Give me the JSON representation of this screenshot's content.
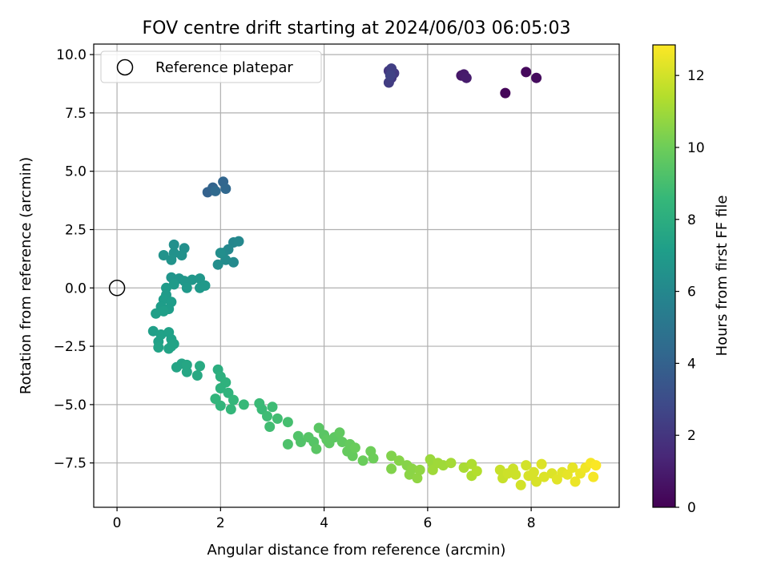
{
  "chart_data": {
    "type": "scatter",
    "title": "FOV centre drift starting at 2024/06/03 06:05:03",
    "xlabel": "Angular distance from reference (arcmin)",
    "ylabel": "Rotation from reference (arcmin)",
    "xlim": [
      -0.45,
      9.7
    ],
    "ylim": [
      -9.4,
      10.45
    ],
    "xticks": [
      0,
      2,
      4,
      6,
      8
    ],
    "xtick_labels": [
      "0",
      "2",
      "4",
      "6",
      "8"
    ],
    "yticks": [
      -7.5,
      -5.0,
      -2.5,
      0.0,
      2.5,
      5.0,
      7.5,
      10.0
    ],
    "ytick_labels": [
      "−7.5",
      "−5.0",
      "−2.5",
      "0.0",
      "2.5",
      "5.0",
      "7.5",
      "10.0"
    ],
    "grid": true,
    "legend": {
      "placement": "top-left",
      "entries": [
        "Reference platepar"
      ]
    },
    "reference_marker": {
      "label": "Reference platepar",
      "x": 0,
      "y": 0,
      "style": "open-circle"
    },
    "colorbar": {
      "label": "Hours from first FF file",
      "colormap": "viridis",
      "range": [
        0,
        12.85
      ],
      "ticks": [
        0,
        2,
        4,
        6,
        8,
        10,
        12
      ],
      "tick_labels": [
        "0",
        "2",
        "4",
        "6",
        "8",
        "10",
        "12"
      ]
    },
    "series": [
      {
        "columns": [
          "x",
          "y",
          "hours"
        ],
        "points": [
          [
            7.5,
            8.35,
            0.2
          ],
          [
            7.9,
            9.25,
            0.3
          ],
          [
            8.1,
            9.0,
            0.4
          ],
          [
            6.65,
            9.1,
            0.8
          ],
          [
            6.7,
            9.15,
            0.9
          ],
          [
            6.75,
            9.0,
            1.0
          ],
          [
            5.25,
            9.3,
            2.0
          ],
          [
            5.3,
            9.0,
            2.1
          ],
          [
            5.35,
            9.2,
            2.2
          ],
          [
            5.25,
            8.8,
            2.3
          ],
          [
            5.3,
            9.4,
            2.4
          ],
          [
            5.28,
            9.1,
            2.5
          ],
          [
            1.75,
            4.1,
            4.0
          ],
          [
            1.85,
            4.3,
            4.1
          ],
          [
            2.05,
            4.55,
            4.2
          ],
          [
            2.1,
            4.25,
            4.3
          ],
          [
            1.9,
            4.15,
            4.4
          ],
          [
            2.25,
            1.95,
            5.9
          ],
          [
            2.35,
            2.0,
            6.0
          ],
          [
            2.15,
            1.65,
            6.0
          ],
          [
            2.05,
            1.5,
            6.1
          ],
          [
            2.25,
            1.1,
            6.1
          ],
          [
            2.1,
            1.2,
            6.2
          ],
          [
            1.95,
            1.0,
            6.3
          ],
          [
            2.0,
            1.5,
            6.3
          ],
          [
            1.1,
            1.85,
            6.4
          ],
          [
            1.3,
            1.7,
            6.4
          ],
          [
            1.1,
            1.5,
            6.5
          ],
          [
            1.25,
            1.4,
            6.5
          ],
          [
            0.9,
            1.4,
            6.6
          ],
          [
            1.05,
            1.2,
            6.6
          ],
          [
            1.05,
            0.45,
            6.7
          ],
          [
            1.2,
            0.4,
            6.7
          ],
          [
            1.3,
            0.3,
            6.8
          ],
          [
            1.45,
            0.35,
            6.8
          ],
          [
            1.6,
            0.4,
            6.8
          ],
          [
            1.7,
            0.1,
            6.9
          ],
          [
            1.6,
            0.0,
            6.9
          ],
          [
            1.35,
            0.0,
            6.9
          ],
          [
            1.1,
            0.15,
            7.0
          ],
          [
            0.95,
            0.0,
            7.0
          ],
          [
            0.95,
            -0.3,
            7.0
          ],
          [
            0.9,
            -0.5,
            7.1
          ],
          [
            1.05,
            -0.6,
            7.1
          ],
          [
            0.85,
            -0.8,
            7.1
          ],
          [
            1.0,
            -0.9,
            7.1
          ],
          [
            0.75,
            -1.1,
            7.2
          ],
          [
            0.9,
            -1.0,
            7.2
          ],
          [
            0.7,
            -1.85,
            7.2
          ],
          [
            0.85,
            -2.0,
            7.3
          ],
          [
            1.0,
            -1.9,
            7.3
          ],
          [
            0.8,
            -2.3,
            7.3
          ],
          [
            1.05,
            -2.2,
            7.3
          ],
          [
            0.8,
            -2.55,
            7.4
          ],
          [
            1.0,
            -2.6,
            7.4
          ],
          [
            1.1,
            -2.4,
            7.4
          ],
          [
            1.05,
            -2.5,
            7.4
          ],
          [
            1.15,
            -3.4,
            7.5
          ],
          [
            1.25,
            -3.25,
            7.5
          ],
          [
            1.35,
            -3.3,
            7.6
          ],
          [
            1.35,
            -3.6,
            7.6
          ],
          [
            1.55,
            -3.75,
            7.7
          ],
          [
            1.6,
            -3.35,
            7.8
          ],
          [
            1.95,
            -3.5,
            8.0
          ],
          [
            2.0,
            -3.8,
            8.1
          ],
          [
            2.1,
            -4.05,
            8.2
          ],
          [
            2.0,
            -4.3,
            8.2
          ],
          [
            2.15,
            -4.5,
            8.3
          ],
          [
            1.9,
            -4.75,
            8.4
          ],
          [
            2.0,
            -5.05,
            8.4
          ],
          [
            2.25,
            -4.8,
            8.5
          ],
          [
            2.2,
            -5.2,
            8.5
          ],
          [
            2.45,
            -5.0,
            8.6
          ],
          [
            2.75,
            -4.95,
            8.7
          ],
          [
            2.8,
            -5.2,
            8.7
          ],
          [
            2.9,
            -5.5,
            8.8
          ],
          [
            3.0,
            -5.1,
            8.8
          ],
          [
            2.95,
            -5.95,
            8.9
          ],
          [
            3.1,
            -5.6,
            8.9
          ],
          [
            3.3,
            -5.75,
            9.0
          ],
          [
            3.3,
            -6.7,
            9.2
          ],
          [
            3.5,
            -6.35,
            9.3
          ],
          [
            3.55,
            -6.6,
            9.3
          ],
          [
            3.7,
            -6.4,
            9.4
          ],
          [
            3.8,
            -6.6,
            9.4
          ],
          [
            3.9,
            -6.0,
            9.5
          ],
          [
            3.85,
            -6.9,
            9.5
          ],
          [
            4.0,
            -6.3,
            9.5
          ],
          [
            4.05,
            -6.5,
            9.6
          ],
          [
            4.1,
            -6.65,
            9.6
          ],
          [
            4.2,
            -6.4,
            9.6
          ],
          [
            4.3,
            -6.2,
            9.7
          ],
          [
            4.35,
            -6.6,
            9.7
          ],
          [
            4.45,
            -7.0,
            9.8
          ],
          [
            4.5,
            -6.7,
            9.8
          ],
          [
            4.55,
            -7.2,
            9.8
          ],
          [
            4.6,
            -6.85,
            9.9
          ],
          [
            4.75,
            -7.4,
            9.9
          ],
          [
            4.9,
            -7.0,
            10.0
          ],
          [
            4.95,
            -7.3,
            10.0
          ],
          [
            5.3,
            -7.2,
            10.4
          ],
          [
            5.3,
            -7.75,
            10.4
          ],
          [
            5.45,
            -7.4,
            10.5
          ],
          [
            5.6,
            -7.6,
            10.5
          ],
          [
            5.65,
            -8.0,
            10.6
          ],
          [
            5.7,
            -7.75,
            10.6
          ],
          [
            5.8,
            -8.15,
            10.7
          ],
          [
            5.85,
            -7.8,
            10.7
          ],
          [
            6.05,
            -7.35,
            10.9
          ],
          [
            6.1,
            -7.55,
            10.9
          ],
          [
            6.1,
            -7.8,
            11.0
          ],
          [
            6.2,
            -7.5,
            11.0
          ],
          [
            6.3,
            -7.6,
            11.0
          ],
          [
            6.45,
            -7.5,
            11.1
          ],
          [
            6.7,
            -7.7,
            11.2
          ],
          [
            6.85,
            -7.55,
            11.3
          ],
          [
            6.85,
            -8.05,
            11.3
          ],
          [
            6.95,
            -7.85,
            11.4
          ],
          [
            7.4,
            -7.8,
            11.8
          ],
          [
            7.45,
            -8.15,
            11.8
          ],
          [
            7.55,
            -7.95,
            11.9
          ],
          [
            7.65,
            -7.75,
            11.9
          ],
          [
            7.7,
            -8.0,
            11.9
          ],
          [
            7.8,
            -8.45,
            12.0
          ],
          [
            7.9,
            -7.6,
            12.0
          ],
          [
            7.95,
            -8.05,
            12.1
          ],
          [
            8.05,
            -7.9,
            12.1
          ],
          [
            8.1,
            -8.3,
            12.1
          ],
          [
            8.2,
            -7.55,
            12.2
          ],
          [
            8.25,
            -8.1,
            12.2
          ],
          [
            8.4,
            -7.95,
            12.2
          ],
          [
            8.5,
            -8.2,
            12.3
          ],
          [
            8.6,
            -7.9,
            12.3
          ],
          [
            8.7,
            -8.0,
            12.4
          ],
          [
            8.8,
            -7.7,
            12.4
          ],
          [
            8.85,
            -8.3,
            12.5
          ],
          [
            8.95,
            -7.95,
            12.5
          ],
          [
            9.05,
            -7.7,
            12.6
          ],
          [
            9.15,
            -7.5,
            12.7
          ],
          [
            9.2,
            -8.1,
            12.7
          ],
          [
            9.25,
            -7.6,
            12.8
          ]
        ]
      }
    ]
  }
}
